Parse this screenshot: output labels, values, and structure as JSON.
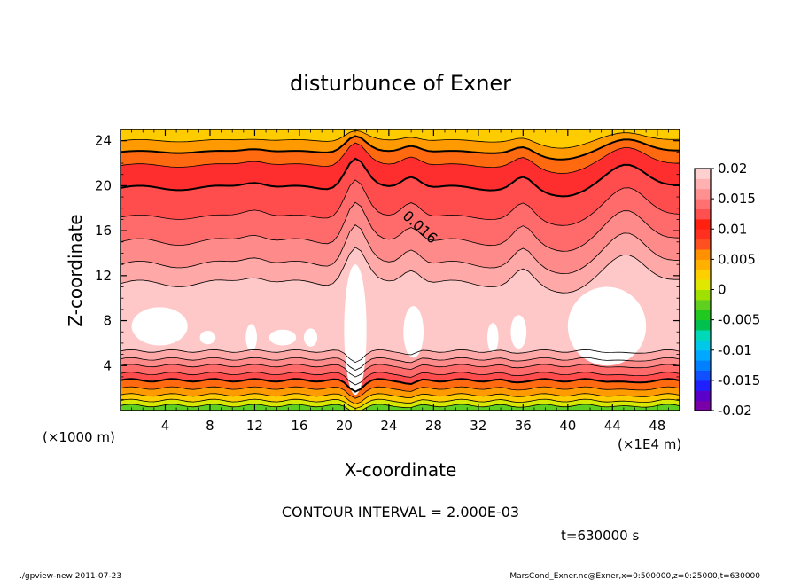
{
  "chart_data": {
    "type": "heatmap",
    "title": "disturbunce of Exner",
    "xlabel": "X-coordinate",
    "ylabel": "Z-coordinate",
    "x_unit": "(×1E4 m)",
    "y_unit": "(×1000 m)",
    "xlim": [
      0,
      50
    ],
    "ylim": [
      0,
      25
    ],
    "x_ticks": [
      4,
      8,
      12,
      16,
      20,
      24,
      28,
      32,
      36,
      40,
      44,
      48
    ],
    "y_ticks": [
      4,
      8,
      12,
      16,
      20,
      24
    ],
    "contour_label": "0.016",
    "contour_interval_text": "CONTOUR INTERVAL = 2.000E-03",
    "time_text": "t=630000 s",
    "colorbar": {
      "levels": [
        -0.02,
        -0.015,
        -0.01,
        -0.005,
        0,
        0.005,
        0.01,
        0.015,
        0.02
      ],
      "labels": [
        "-0.02",
        "-0.015",
        "-0.01",
        "-0.005",
        "0",
        "0.005",
        "0.01",
        "0.015",
        "0.02"
      ],
      "colors": [
        "#7a00a8",
        "#5a00c8",
        "#2020ff",
        "#1050ff",
        "#0080ff",
        "#00a8ff",
        "#00c8e8",
        "#00d8b8",
        "#00c050",
        "#20c820",
        "#60d020",
        "#a0e000",
        "#e0e800",
        "#ffd000",
        "#ffb000",
        "#ff9000",
        "#ff5020",
        "#ff3020",
        "#ff2010",
        "#ff5050",
        "#ff7070",
        "#ff9090",
        "#ffb0b0",
        "#ffd0d0"
      ]
    },
    "field_colors": {
      "white": "#ffffff",
      "pink1": "#ffc8c8",
      "pink2": "#ffa8a8",
      "pink3": "#ff8a8a",
      "red1": "#ff6b6b",
      "red2": "#ff4c4c",
      "red3": "#ff2e2e",
      "orange1": "#ff6a10",
      "orange2": "#ff9a00",
      "yellow": "#ffcc00",
      "lime": "#d8e800",
      "green": "#60d020"
    }
  },
  "footer": {
    "left": "./gpview-new   2011-07-23",
    "right": "MarsCond_Exner.nc@Exner,x=0:500000,z=0:25000,t=630000"
  }
}
